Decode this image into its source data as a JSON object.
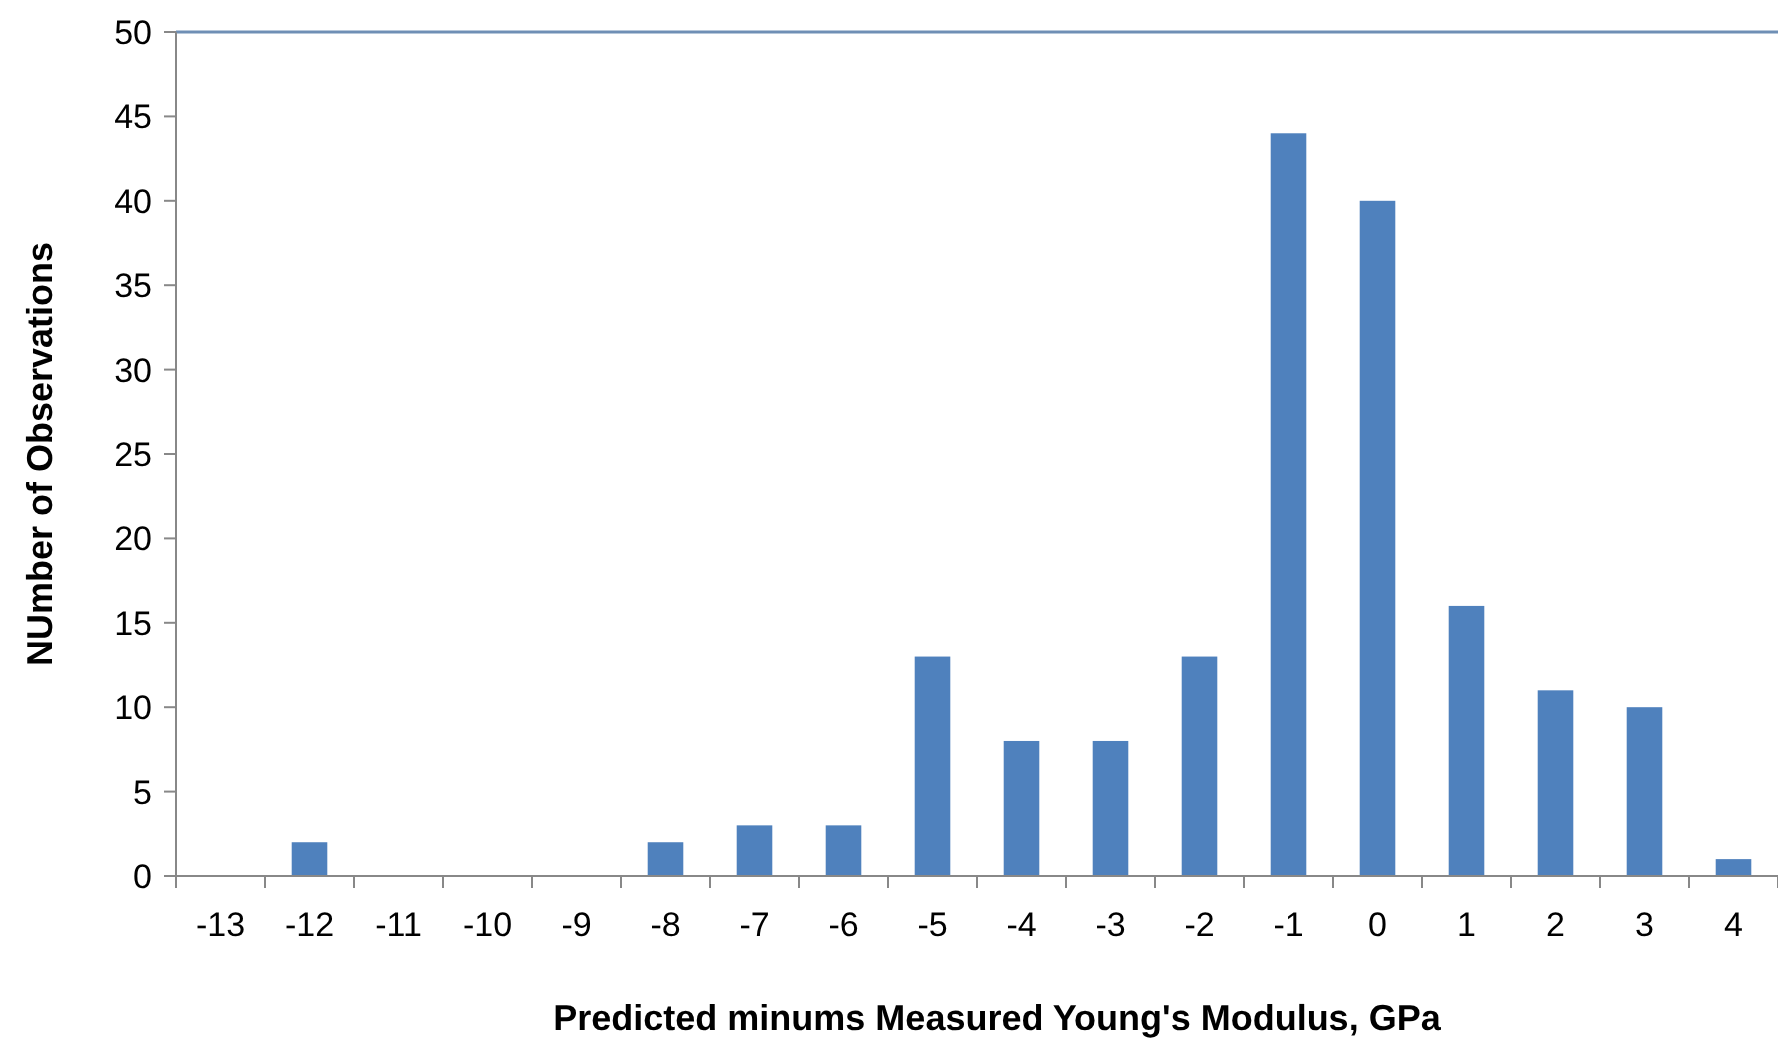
{
  "chart_data": {
    "type": "bar",
    "xlabel": "Predicted minums Measured Young's Modulus, GPa",
    "ylabel": "NUmber of Observations",
    "categories": [
      "-13",
      "-12",
      "-11",
      "-10",
      "-9",
      "-8",
      "-7",
      "-6",
      "-5",
      "-4",
      "-3",
      "-2",
      "-1",
      "0",
      "1",
      "2",
      "3",
      "4"
    ],
    "values": [
      0,
      2,
      0,
      0,
      0,
      2,
      3,
      3,
      13,
      8,
      8,
      13,
      44,
      40,
      16,
      11,
      10,
      1
    ],
    "color": "#4f81bd",
    "ylim": [
      0,
      50
    ],
    "yticks": [
      0,
      5,
      10,
      15,
      20,
      25,
      30,
      35,
      40,
      45,
      50
    ],
    "grid": false
  }
}
